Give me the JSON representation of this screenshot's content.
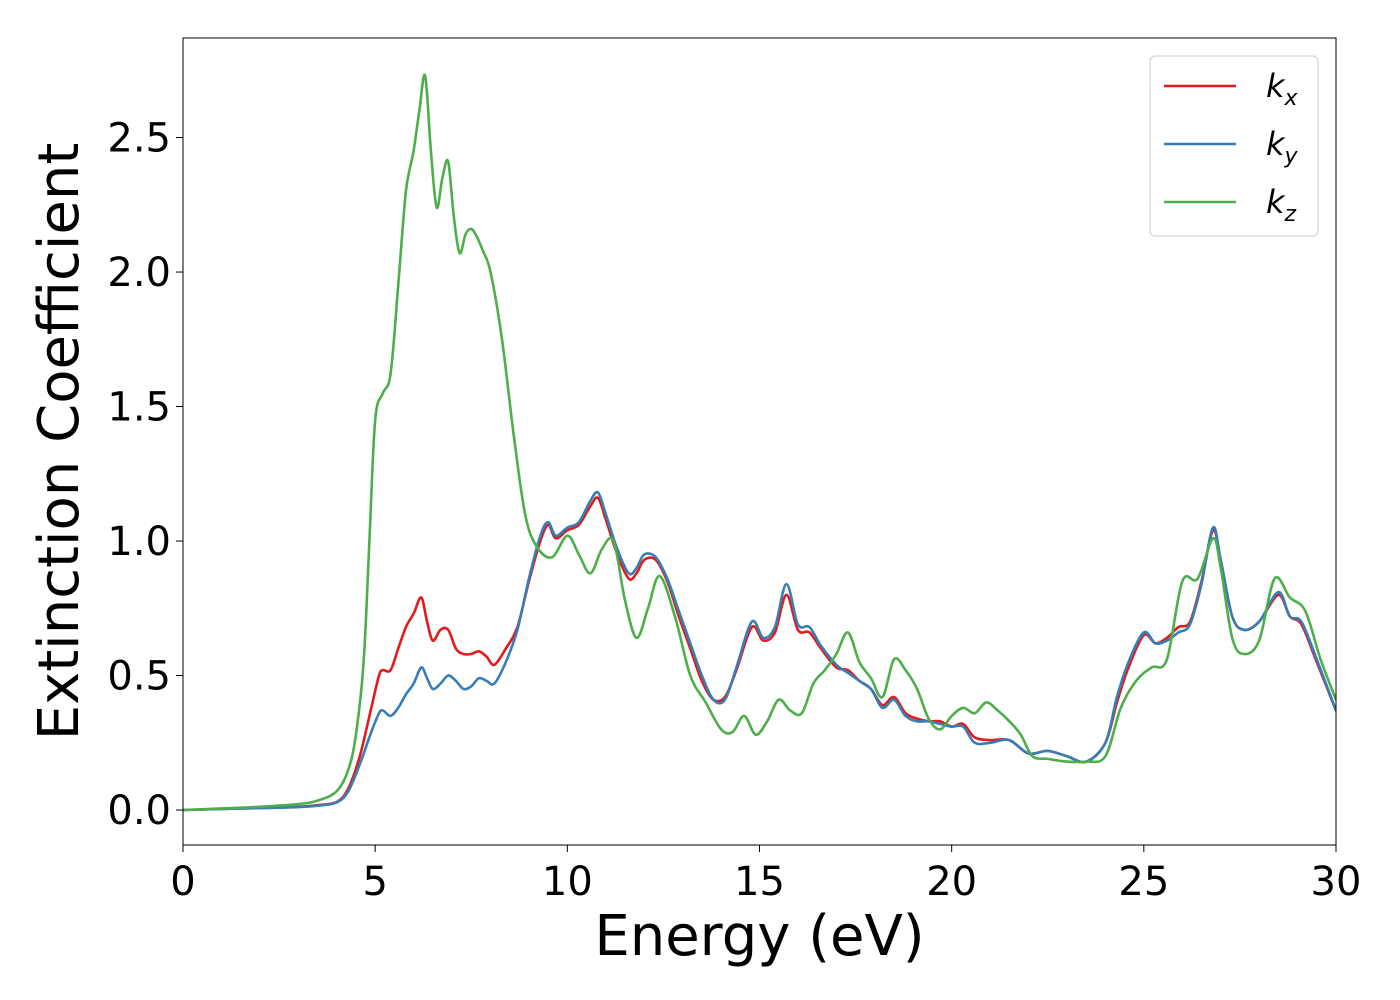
{
  "chart_data": {
    "type": "line",
    "title": "",
    "xlabel": "Energy (eV)",
    "ylabel": "Extinction Coefficient",
    "xlim": [
      0,
      30
    ],
    "ylim": [
      -0.13,
      2.87
    ],
    "xticks": [
      0,
      5,
      10,
      15,
      20,
      25,
      30
    ],
    "xtick_labels": [
      "0",
      "5",
      "10",
      "15",
      "20",
      "25",
      "30"
    ],
    "yticks": [
      0.0,
      0.5,
      1.0,
      1.5,
      2.0,
      2.5
    ],
    "ytick_labels": [
      "0.0",
      "0.5",
      "1.0",
      "1.5",
      "2.0",
      "2.5"
    ],
    "grid": false,
    "legend_position": "top-right",
    "series": [
      {
        "name": "k",
        "subscript": "x",
        "color": "#e41a1c",
        "x": [
          0,
          1,
          2,
          3,
          3.5,
          4.0,
          4.3,
          4.6,
          4.9,
          5.1,
          5.2,
          5.4,
          5.6,
          5.8,
          6.0,
          6.2,
          6.35,
          6.5,
          6.7,
          6.9,
          7.1,
          7.3,
          7.5,
          7.7,
          7.9,
          8.1,
          8.4,
          8.7,
          9.0,
          9.3,
          9.5,
          9.7,
          10.0,
          10.3,
          10.6,
          10.8,
          11.0,
          11.3,
          11.6,
          11.8,
          12.0,
          12.3,
          12.6,
          12.9,
          13.2,
          13.5,
          13.8,
          14.1,
          14.4,
          14.8,
          15.1,
          15.4,
          15.7,
          16.0,
          16.3,
          16.6,
          17.0,
          17.3,
          17.6,
          17.9,
          18.2,
          18.5,
          18.8,
          19.1,
          19.4,
          19.7,
          20.0,
          20.3,
          20.6,
          21.0,
          21.5,
          22.0,
          22.5,
          23.0,
          23.5,
          24.0,
          24.3,
          24.6,
          25.0,
          25.3,
          25.6,
          25.9,
          26.2,
          26.5,
          26.8,
          27.0,
          27.3,
          27.6,
          28.0,
          28.5,
          28.8,
          29.1,
          29.5,
          30.0
        ],
        "y": [
          0.0,
          0.004,
          0.008,
          0.012,
          0.018,
          0.03,
          0.08,
          0.2,
          0.38,
          0.5,
          0.52,
          0.52,
          0.6,
          0.68,
          0.73,
          0.79,
          0.7,
          0.63,
          0.67,
          0.67,
          0.6,
          0.58,
          0.58,
          0.59,
          0.57,
          0.54,
          0.6,
          0.68,
          0.85,
          1.0,
          1.06,
          1.01,
          1.04,
          1.06,
          1.13,
          1.16,
          1.08,
          0.95,
          0.86,
          0.88,
          0.93,
          0.93,
          0.85,
          0.72,
          0.6,
          0.48,
          0.41,
          0.42,
          0.52,
          0.68,
          0.63,
          0.66,
          0.8,
          0.67,
          0.66,
          0.6,
          0.53,
          0.52,
          0.48,
          0.45,
          0.39,
          0.42,
          0.36,
          0.34,
          0.33,
          0.33,
          0.31,
          0.32,
          0.27,
          0.26,
          0.26,
          0.21,
          0.22,
          0.2,
          0.18,
          0.25,
          0.4,
          0.53,
          0.65,
          0.62,
          0.64,
          0.68,
          0.7,
          0.85,
          1.04,
          0.93,
          0.72,
          0.67,
          0.7,
          0.8,
          0.72,
          0.69,
          0.55,
          0.37
        ]
      },
      {
        "name": "k",
        "subscript": "y",
        "color": "#377eb8",
        "x": [
          0,
          1,
          2,
          3,
          3.5,
          4.0,
          4.3,
          4.6,
          4.9,
          5.1,
          5.2,
          5.4,
          5.6,
          5.8,
          6.0,
          6.2,
          6.35,
          6.5,
          6.7,
          6.9,
          7.1,
          7.3,
          7.5,
          7.7,
          7.9,
          8.1,
          8.4,
          8.7,
          9.0,
          9.3,
          9.5,
          9.7,
          10.0,
          10.3,
          10.6,
          10.8,
          11.0,
          11.3,
          11.6,
          11.8,
          12.0,
          12.3,
          12.6,
          12.9,
          13.2,
          13.5,
          13.8,
          14.1,
          14.4,
          14.8,
          15.1,
          15.4,
          15.7,
          16.0,
          16.3,
          16.6,
          17.0,
          17.3,
          17.6,
          17.9,
          18.2,
          18.5,
          18.8,
          19.1,
          19.4,
          19.7,
          20.0,
          20.3,
          20.6,
          21.0,
          21.5,
          22.0,
          22.5,
          23.0,
          23.5,
          24.0,
          24.3,
          24.6,
          25.0,
          25.3,
          25.6,
          25.9,
          26.2,
          26.5,
          26.8,
          27.0,
          27.3,
          27.6,
          28.0,
          28.5,
          28.8,
          29.1,
          29.5,
          30.0
        ],
        "y": [
          0.0,
          0.004,
          0.007,
          0.011,
          0.016,
          0.028,
          0.07,
          0.17,
          0.29,
          0.36,
          0.37,
          0.35,
          0.38,
          0.43,
          0.47,
          0.53,
          0.49,
          0.45,
          0.47,
          0.5,
          0.48,
          0.45,
          0.46,
          0.49,
          0.48,
          0.47,
          0.55,
          0.67,
          0.86,
          1.02,
          1.07,
          1.02,
          1.05,
          1.07,
          1.15,
          1.18,
          1.1,
          0.97,
          0.88,
          0.9,
          0.95,
          0.94,
          0.86,
          0.74,
          0.62,
          0.5,
          0.41,
          0.41,
          0.53,
          0.7,
          0.64,
          0.68,
          0.84,
          0.69,
          0.68,
          0.61,
          0.54,
          0.51,
          0.48,
          0.45,
          0.38,
          0.41,
          0.35,
          0.33,
          0.33,
          0.32,
          0.31,
          0.31,
          0.25,
          0.25,
          0.26,
          0.21,
          0.22,
          0.2,
          0.18,
          0.25,
          0.42,
          0.55,
          0.66,
          0.62,
          0.63,
          0.66,
          0.69,
          0.84,
          1.05,
          0.93,
          0.72,
          0.67,
          0.7,
          0.81,
          0.72,
          0.7,
          0.56,
          0.37
        ]
      },
      {
        "name": "k",
        "subscript": "z",
        "color": "#4daf4a",
        "x": [
          0,
          1,
          2,
          3,
          3.5,
          4.0,
          4.3,
          4.5,
          4.7,
          4.85,
          5.0,
          5.2,
          5.4,
          5.6,
          5.8,
          6.0,
          6.15,
          6.3,
          6.45,
          6.6,
          6.75,
          6.9,
          7.05,
          7.2,
          7.35,
          7.5,
          7.65,
          7.8,
          8.0,
          8.3,
          8.6,
          8.9,
          9.2,
          9.6,
          10.0,
          10.3,
          10.6,
          10.9,
          11.2,
          11.5,
          11.8,
          12.1,
          12.4,
          12.8,
          13.2,
          13.6,
          14.0,
          14.3,
          14.6,
          14.9,
          15.2,
          15.5,
          15.8,
          16.1,
          16.4,
          16.7,
          17.0,
          17.3,
          17.6,
          17.9,
          18.2,
          18.5,
          18.8,
          19.1,
          19.4,
          19.7,
          20.0,
          20.3,
          20.6,
          20.9,
          21.2,
          21.5,
          21.8,
          22.1,
          22.5,
          23.0,
          23.5,
          24.0,
          24.4,
          24.8,
          25.2,
          25.6,
          26.0,
          26.4,
          26.8,
          27.0,
          27.3,
          27.6,
          28.0,
          28.4,
          28.8,
          29.2,
          29.6,
          30.0
        ],
        "y": [
          0.0,
          0.006,
          0.012,
          0.022,
          0.035,
          0.07,
          0.15,
          0.28,
          0.55,
          1.0,
          1.45,
          1.55,
          1.62,
          1.95,
          2.3,
          2.45,
          2.6,
          2.73,
          2.45,
          2.24,
          2.35,
          2.41,
          2.2,
          2.07,
          2.14,
          2.16,
          2.13,
          2.08,
          2.0,
          1.75,
          1.4,
          1.1,
          0.98,
          0.94,
          1.02,
          0.95,
          0.88,
          0.97,
          1.0,
          0.78,
          0.64,
          0.75,
          0.87,
          0.72,
          0.5,
          0.4,
          0.3,
          0.29,
          0.35,
          0.28,
          0.33,
          0.41,
          0.37,
          0.36,
          0.47,
          0.52,
          0.58,
          0.66,
          0.55,
          0.49,
          0.42,
          0.56,
          0.52,
          0.45,
          0.34,
          0.3,
          0.35,
          0.38,
          0.36,
          0.4,
          0.37,
          0.33,
          0.28,
          0.2,
          0.19,
          0.18,
          0.18,
          0.2,
          0.38,
          0.48,
          0.53,
          0.56,
          0.85,
          0.86,
          1.01,
          0.9,
          0.64,
          0.58,
          0.63,
          0.86,
          0.79,
          0.74,
          0.56,
          0.41
        ]
      }
    ]
  }
}
